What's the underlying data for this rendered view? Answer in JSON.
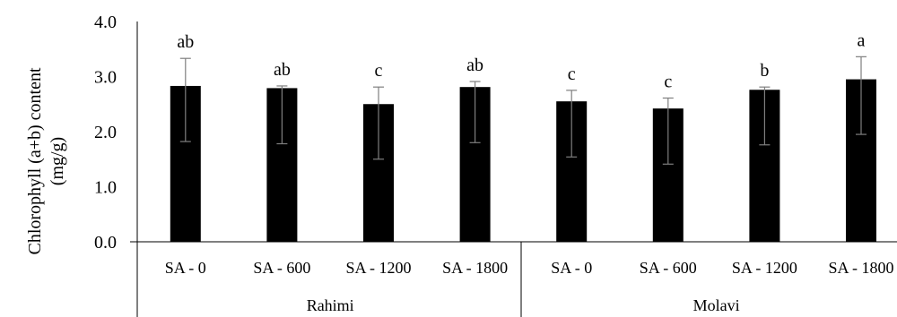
{
  "chart_data": {
    "type": "bar",
    "title": "",
    "ylabel_lines": [
      "Chlorophyll (a+b) content",
      "(mg/g)"
    ],
    "xlabel": "",
    "ylim": [
      0,
      4
    ],
    "yticks": [
      "0.0",
      "1.0",
      "2.0",
      "3.0",
      "4.0"
    ],
    "bar_color": "#000000",
    "error_color": "#7f7f7f",
    "grid": false,
    "groups": [
      {
        "name": "Rahimi",
        "categories": [
          "SA - 0",
          "SA - 600",
          "SA - 1200",
          "SA - 1800"
        ],
        "values": [
          2.83,
          2.79,
          2.5,
          2.81
        ],
        "error_low": [
          1.82,
          1.78,
          1.5,
          1.8
        ],
        "error_high": [
          3.33,
          2.83,
          2.81,
          2.91
        ],
        "significance": [
          "ab",
          "ab",
          "c",
          "ab"
        ]
      },
      {
        "name": "Molavi",
        "categories": [
          "SA - 0",
          "SA - 600",
          "SA - 1200",
          "SA - 1800"
        ],
        "values": [
          2.55,
          2.42,
          2.76,
          2.95
        ],
        "error_low": [
          1.54,
          1.41,
          1.76,
          1.95
        ],
        "error_high": [
          2.75,
          2.61,
          2.81,
          3.36
        ],
        "significance": [
          "c",
          "c",
          "b",
          "a"
        ]
      }
    ]
  }
}
